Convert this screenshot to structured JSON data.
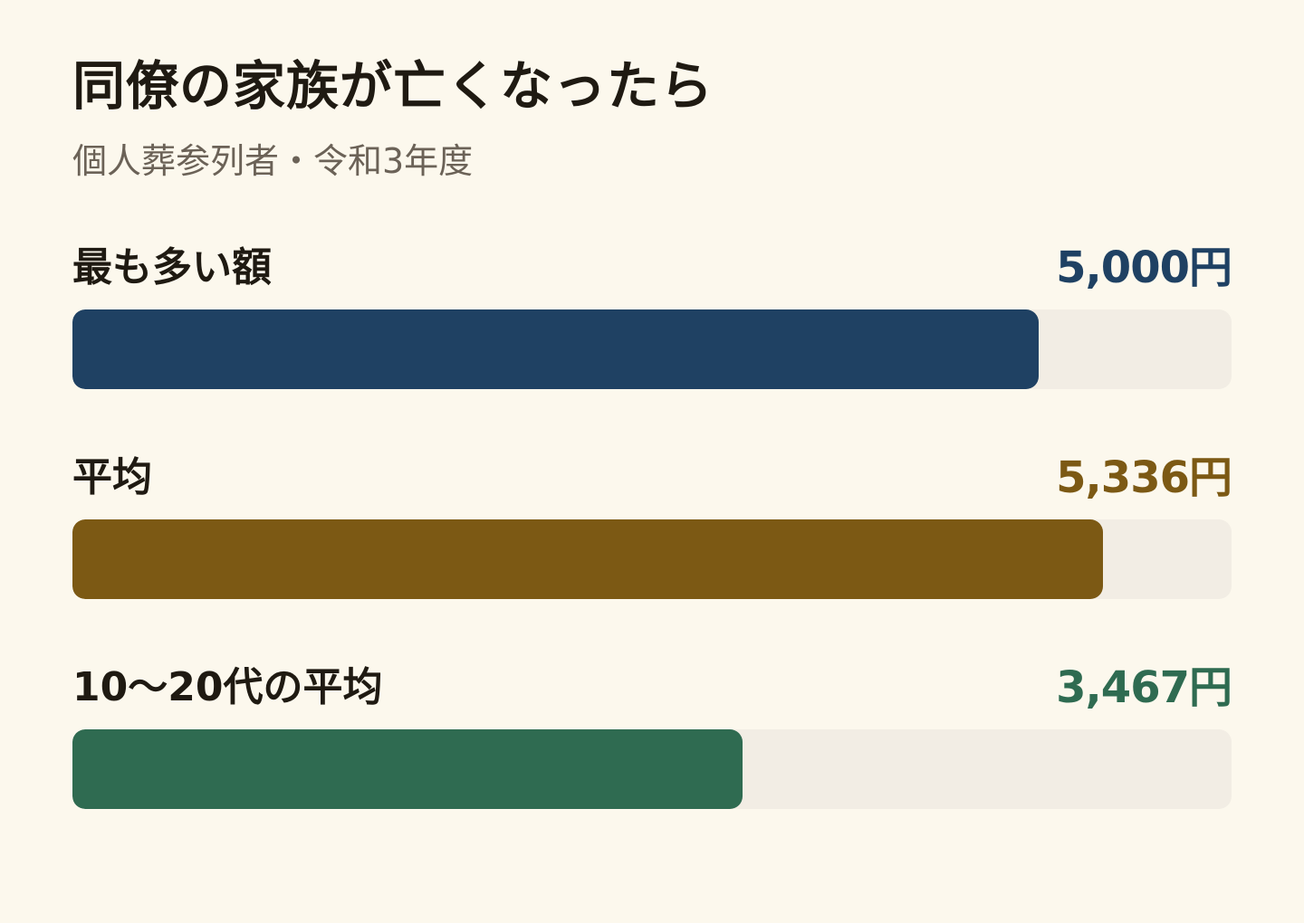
{
  "title": "同僚の家族が亡くなったら",
  "subtitle": "個人葬参列者・令和3年度",
  "chart_data": {
    "type": "bar",
    "orientation": "horizontal",
    "title": "同僚の家族が亡くなったら",
    "subtitle": "個人葬参列者・令和3年度",
    "xlim": [
      0,
      6000
    ],
    "categories": [
      "最も多い額",
      "平均",
      "10〜20代の平均"
    ],
    "values": [
      5000,
      5336,
      3467
    ],
    "value_labels": [
      "5,000円",
      "5,336円",
      "3,467円"
    ],
    "colors": [
      "#1f4163",
      "#7c5914",
      "#2f6b51"
    ],
    "track_color": "#f2ede4"
  }
}
